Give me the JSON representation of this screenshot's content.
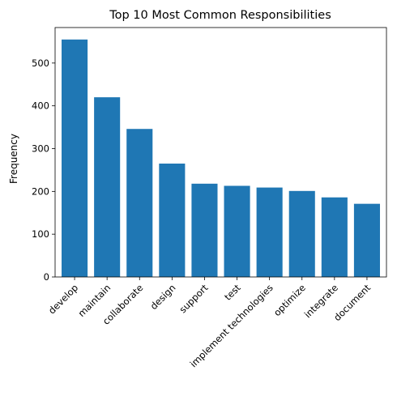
{
  "chart_data": {
    "type": "bar",
    "title": "Top 10 Most Common Responsibilities",
    "xlabel": "",
    "ylabel": "Frequency",
    "categories": [
      "develop",
      "maintain",
      "collaborate",
      "design",
      "support",
      "test",
      "implement technologies",
      "optimize",
      "integrate",
      "document"
    ],
    "values": [
      555,
      420,
      346,
      265,
      218,
      213,
      209,
      201,
      186,
      171
    ],
    "ylim": [
      0,
      583
    ],
    "yticks": [
      0,
      100,
      200,
      300,
      400,
      500
    ],
    "bar_color": "#1f77b4",
    "grid": false,
    "legend": "none"
  }
}
